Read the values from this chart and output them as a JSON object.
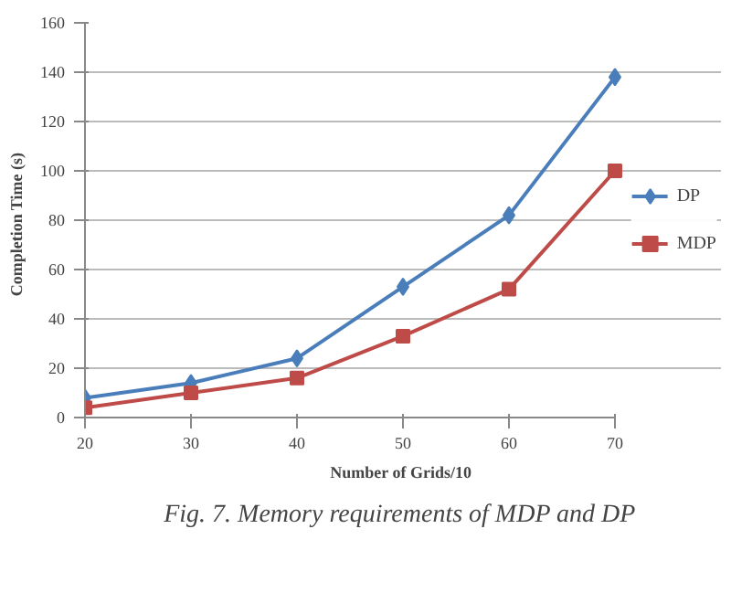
{
  "chart_data": {
    "type": "line",
    "xlabel": "Number  of Grids/10",
    "ylabel": "Completion  Time  (s)",
    "categories": [
      "20",
      "30",
      "40",
      "50",
      "60",
      "70"
    ],
    "series": [
      {
        "name": "DP",
        "color": "#4a7ebb",
        "marker": "diamond",
        "values": [
          8,
          14,
          24,
          53,
          82,
          138
        ]
      },
      {
        "name": "MDP",
        "color": "#be4b48",
        "marker": "square",
        "values": [
          4,
          10,
          16,
          33,
          52,
          100
        ]
      }
    ],
    "ylim": [
      0,
      160
    ],
    "yticks": [
      0,
      20,
      40,
      60,
      80,
      100,
      120,
      140,
      160
    ],
    "grid": "y",
    "legend": "right",
    "annotations": [
      "Fig. 7.  Memory requirements of MDP and DP"
    ]
  }
}
